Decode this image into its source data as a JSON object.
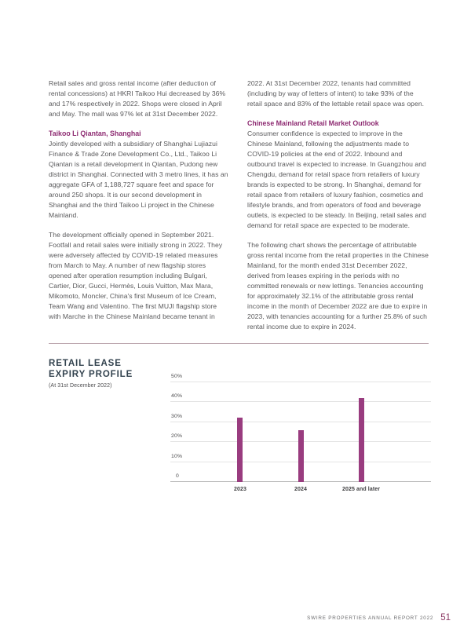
{
  "columns": {
    "left": {
      "para1": "Retail sales and gross rental income (after deduction of rental concessions) at HKRI Taikoo Hui decreased by 36% and 17% respectively in 2022. Shops were closed in April and May. The mall was 97% let at 31st December 2022.",
      "heading1": "Taikoo Li Qiantan, Shanghai",
      "para2": "Jointly developed with a subsidiary of Shanghai Lujiazui Finance & Trade Zone Development Co., Ltd., Taikoo Li Qiantan is a retail development in Qiantan, Pudong new district in Shanghai. Connected with 3 metro lines, it has an aggregate GFA of 1,188,727 square feet and space for around 250 shops. It is our second development in Shanghai and the third Taikoo Li project in the Chinese Mainland.",
      "para3": "The development officially opened in September 2021. Footfall and retail sales were initially strong in 2022. They were adversely affected by COVID-19 related measures from March to May. A number of new flagship stores opened after operation resumption including Bulgari, Cartier, Dior, Gucci, Hermès, Louis Vuitton, Max Mara, Mikomoto, Moncler, China's first Museum of Ice Cream, Team Wang and Valentino. The first MUJI flagship store with Marche in the Chinese Mainland became tenant in"
    },
    "right": {
      "para1": "2022. At 31st December 2022, tenants had committed (including by way of letters of intent) to take 93% of the retail space and 83% of the lettable retail space was open.",
      "heading1": "Chinese Mainland Retail Market Outlook",
      "para2": "Consumer confidence is expected to improve in the Chinese Mainland, following the adjustments made to COVID-19 policies at the end of 2022. Inbound and outbound travel is expected to increase. In Guangzhou and Chengdu, demand for retail space from retailers of luxury brands is expected to be strong. In Shanghai, demand for retail space from retailers of luxury fashion, cosmetics and lifestyle brands, and from operators of food and beverage outlets, is expected to be steady. In Beijing, retail sales and demand for retail space are expected to be moderate.",
      "para3": "The following chart shows the percentage of attributable gross rental income from the retail properties in the Chinese Mainland, for the month ended 31st December 2022, derived from leases expiring in the periods with no committed renewals or new lettings. Tenancies accounting for approximately 32.1% of the attributable gross rental income in the month of December 2022 are due to expire in 2023, with tenancies accounting for a further 25.8% of such rental income due to expire in 2024."
    }
  },
  "chart": {
    "title_line1": "RETAIL LEASE",
    "title_line2": "EXPIRY PROFILE",
    "subtitle": "(At 31st December 2022)"
  },
  "chart_data": {
    "type": "bar",
    "title": "RETAIL LEASE EXPIRY PROFILE",
    "subtitle": "(At 31st December 2022)",
    "categories": [
      "2023",
      "2024",
      "2025 and later"
    ],
    "values": [
      32.1,
      25.8,
      42.1
    ],
    "unit": "%",
    "ylim": [
      0,
      50
    ],
    "yticks": [
      {
        "label": "50%",
        "value": 50
      },
      {
        "label": "40%",
        "value": 40
      },
      {
        "label": "30%",
        "value": 30
      },
      {
        "label": "20%",
        "value": 20
      },
      {
        "label": "10%",
        "value": 10
      },
      {
        "label": "0",
        "value": 0
      }
    ],
    "grid": true,
    "legend": "none",
    "bar_color": "#993c7f"
  },
  "footer": {
    "report_name": "SWIRE PROPERTIES ANNUAL REPORT 2022",
    "page_number": "51"
  },
  "colors": {
    "accent_purple": "#8e2c72",
    "bar": "#993c7f",
    "chart_title": "#32424e",
    "body_text": "#59595b",
    "divider": "#b9a2ab",
    "gridline": "#e4e4e4",
    "page_number": "#8c3a64"
  }
}
